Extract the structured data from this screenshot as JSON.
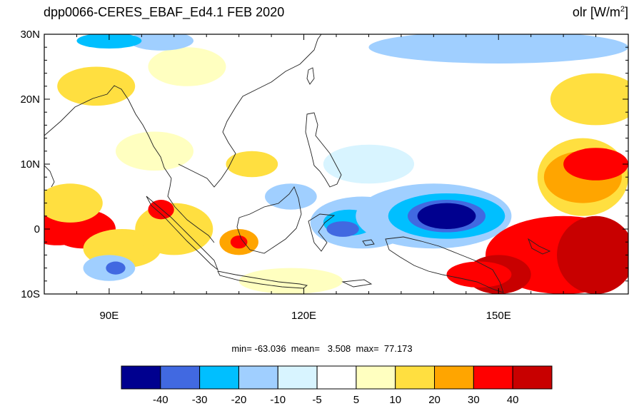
{
  "title": {
    "left": "dpp0066-CERES_EBAF_Ed4.1  FEB 2020",
    "right_var": "olr [W/m",
    "right_sup": "2",
    "right_close": "]"
  },
  "map": {
    "lat_range": [
      -10,
      30
    ],
    "lon_range": [
      80,
      170
    ],
    "lat_ticks": [
      {
        "value": 30,
        "label": "30N"
      },
      {
        "value": 20,
        "label": "20N"
      },
      {
        "value": 10,
        "label": "10N"
      },
      {
        "value": 0,
        "label": "0"
      },
      {
        "value": -10,
        "label": "10S"
      }
    ],
    "lon_ticks": [
      {
        "value": 90,
        "label": "90E"
      },
      {
        "value": 120,
        "label": "120E"
      },
      {
        "value": 150,
        "label": "150E"
      }
    ]
  },
  "stats": {
    "text": "min= -63.036  mean=   3.508  max=  77.173"
  },
  "colorbar": {
    "colors": [
      "#00008f",
      "#4169e1",
      "#00bfff",
      "#a0cfff",
      "#d8f4ff",
      "#ffffff",
      "#ffffc0",
      "#ffdf40",
      "#ffa500",
      "#ff0000",
      "#c80000"
    ],
    "labels": [
      "-40",
      "-30",
      "-20",
      "-10",
      "-5",
      "5",
      "10",
      "20",
      "30",
      "40"
    ]
  },
  "anomaly_blobs": [
    {
      "lon": 82,
      "lat": 0,
      "rx": 5,
      "ry": 2.5,
      "level": 9
    },
    {
      "lon": 86,
      "lat": 0,
      "rx": 5,
      "ry": 3,
      "level": 9
    },
    {
      "lon": 84,
      "lat": 4,
      "rx": 5,
      "ry": 3,
      "level": 7
    },
    {
      "lon": 92,
      "lat": -3,
      "rx": 6,
      "ry": 3,
      "level": 7
    },
    {
      "lon": 90,
      "lat": -6,
      "rx": 4,
      "ry": 2,
      "level": 3
    },
    {
      "lon": 91,
      "lat": -6,
      "rx": 1.5,
      "ry": 1,
      "level": 1
    },
    {
      "lon": 88,
      "lat": 22,
      "rx": 6,
      "ry": 3,
      "level": 7
    },
    {
      "lon": 100,
      "lat": 0,
      "rx": 6,
      "ry": 4,
      "level": 7
    },
    {
      "lon": 98,
      "lat": 3,
      "rx": 2,
      "ry": 1.5,
      "level": 9
    },
    {
      "lon": 110,
      "lat": -2,
      "rx": 3,
      "ry": 2,
      "level": 8
    },
    {
      "lon": 110,
      "lat": -2,
      "rx": 1.3,
      "ry": 1,
      "level": 9
    },
    {
      "lon": 112,
      "lat": 10,
      "rx": 4,
      "ry": 2,
      "level": 7
    },
    {
      "lon": 102,
      "lat": 25,
      "rx": 6,
      "ry": 3,
      "level": 6
    },
    {
      "lon": 98,
      "lat": 29,
      "rx": 5,
      "ry": 1.5,
      "level": 3
    },
    {
      "lon": 90,
      "lat": 29,
      "rx": 5,
      "ry": 1.2,
      "level": 2
    },
    {
      "lon": 118,
      "lat": 5,
      "rx": 4,
      "ry": 2,
      "level": 3
    },
    {
      "lon": 130,
      "lat": 10,
      "rx": 7,
      "ry": 3,
      "level": 4
    },
    {
      "lon": 129,
      "lat": 1,
      "rx": 8,
      "ry": 4,
      "level": 3
    },
    {
      "lon": 127,
      "lat": 1,
      "rx": 4,
      "ry": 2,
      "level": 2
    },
    {
      "lon": 126,
      "lat": 0,
      "rx": 2.5,
      "ry": 1.2,
      "level": 1
    },
    {
      "lon": 140,
      "lat": 2,
      "rx": 12,
      "ry": 5,
      "level": 3
    },
    {
      "lon": 142,
      "lat": 2,
      "rx": 9,
      "ry": 3.5,
      "level": 2
    },
    {
      "lon": 142,
      "lat": 2,
      "rx": 6,
      "ry": 2.5,
      "level": 1
    },
    {
      "lon": 142,
      "lat": 2,
      "rx": 4.5,
      "ry": 2,
      "level": 0
    },
    {
      "lon": 150,
      "lat": 28,
      "rx": 20,
      "ry": 2.5,
      "level": 3
    },
    {
      "lon": 163,
      "lat": 8,
      "rx": 7,
      "ry": 6,
      "level": 7
    },
    {
      "lon": 163,
      "lat": 8,
      "rx": 6,
      "ry": 4,
      "level": 8
    },
    {
      "lon": 165,
      "lat": 10,
      "rx": 5,
      "ry": 2.5,
      "level": 9
    },
    {
      "lon": 160,
      "lat": -4,
      "rx": 12,
      "ry": 6,
      "level": 9
    },
    {
      "lon": 165,
      "lat": -4,
      "rx": 6,
      "ry": 6,
      "level": 10
    },
    {
      "lon": 150,
      "lat": -7,
      "rx": 5,
      "ry": 3,
      "level": 10
    },
    {
      "lon": 147,
      "lat": -7,
      "rx": 5,
      "ry": 2,
      "level": 9
    },
    {
      "lon": 165,
      "lat": 20,
      "rx": 7,
      "ry": 4,
      "level": 7
    },
    {
      "lon": 118,
      "lat": -8,
      "rx": 8,
      "ry": 2,
      "level": 6
    },
    {
      "lon": 97,
      "lat": 12,
      "rx": 6,
      "ry": 3,
      "level": 6
    }
  ]
}
